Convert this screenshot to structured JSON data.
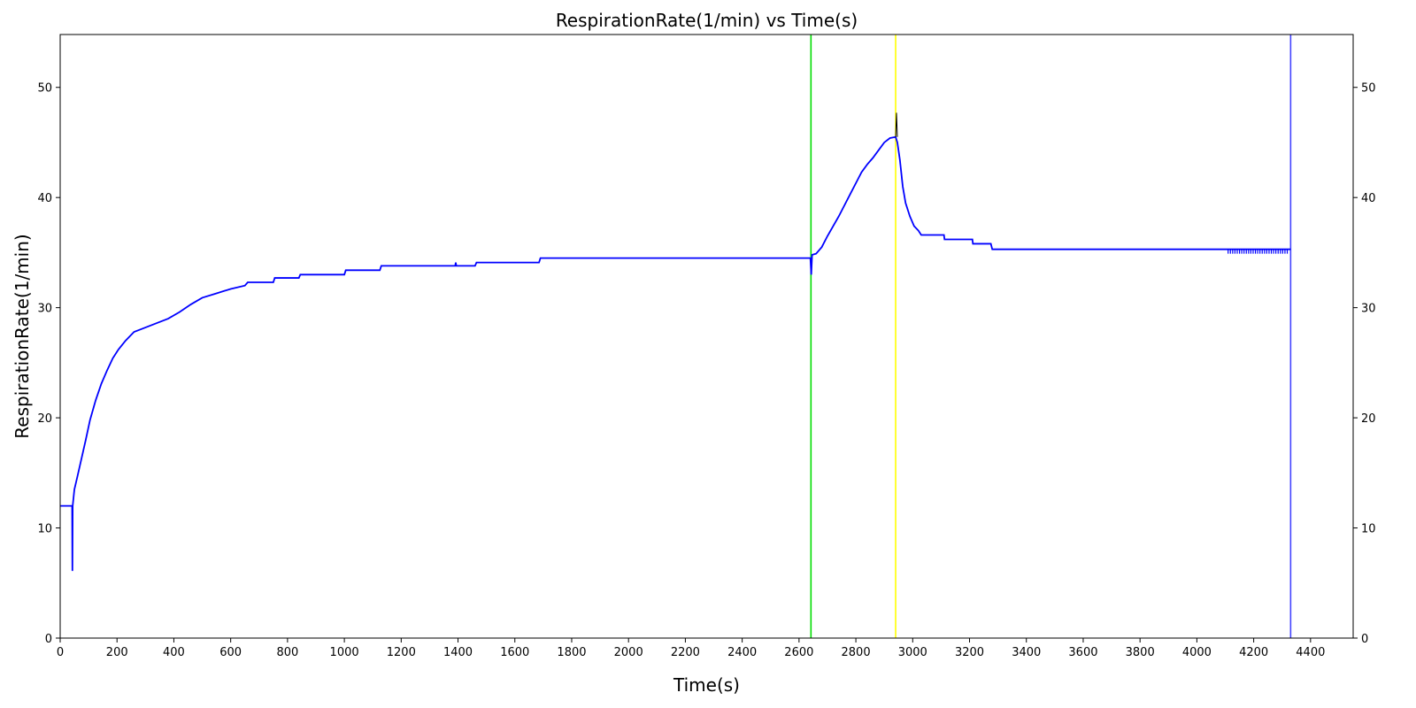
{
  "chart_data": {
    "type": "line",
    "title": "RespirationRate(1/min) vs Time(s)",
    "xlabel": "Time(s)",
    "ylabel": "RespirationRate(1/min)",
    "xlim": [
      0,
      4550
    ],
    "ylim": [
      0,
      54.8
    ],
    "x_ticks": [
      0,
      200,
      400,
      600,
      800,
      1000,
      1200,
      1400,
      1600,
      1800,
      2000,
      2200,
      2400,
      2600,
      2800,
      3000,
      3200,
      3400,
      3600,
      3800,
      4000,
      4200,
      4400
    ],
    "y_ticks": [
      0,
      10,
      20,
      30,
      40,
      50
    ],
    "right_y_ticks": true,
    "grid": false,
    "series": [
      {
        "color": "#0000ff",
        "points": [
          [
            0,
            12
          ],
          [
            40,
            12
          ],
          [
            42,
            12
          ],
          [
            43,
            6.1
          ],
          [
            44,
            12
          ],
          [
            46,
            12.5
          ],
          [
            50,
            13.5
          ],
          [
            60,
            14.6
          ],
          [
            75,
            16.3
          ],
          [
            90,
            18
          ],
          [
            105,
            19.8
          ],
          [
            125,
            21.6
          ],
          [
            145,
            23.1
          ],
          [
            165,
            24.3
          ],
          [
            185,
            25.4
          ],
          [
            205,
            26.2
          ],
          [
            230,
            27.0
          ],
          [
            260,
            27.8
          ],
          [
            280,
            28.0
          ],
          [
            300,
            28.2
          ],
          [
            340,
            28.6
          ],
          [
            380,
            29.0
          ],
          [
            420,
            29.6
          ],
          [
            460,
            30.3
          ],
          [
            500,
            30.9
          ],
          [
            550,
            31.3
          ],
          [
            600,
            31.7
          ],
          [
            650,
            32.0
          ],
          [
            660,
            32.3
          ],
          [
            750,
            32.3
          ],
          [
            755,
            32.7
          ],
          [
            840,
            32.7
          ],
          [
            845,
            33.0
          ],
          [
            1000,
            33.0
          ],
          [
            1005,
            33.4
          ],
          [
            1125,
            33.4
          ],
          [
            1130,
            33.8
          ],
          [
            1390,
            33.8
          ],
          [
            1392,
            34.1
          ],
          [
            1394,
            33.8
          ],
          [
            1460,
            33.8
          ],
          [
            1465,
            34.1
          ],
          [
            1685,
            34.1
          ],
          [
            1690,
            34.5
          ],
          [
            2640,
            34.5
          ],
          [
            2643,
            33.0
          ],
          [
            2646,
            34.8
          ],
          [
            2660,
            34.9
          ],
          [
            2680,
            35.5
          ],
          [
            2700,
            36.5
          ],
          [
            2720,
            37.4
          ],
          [
            2740,
            38.3
          ],
          [
            2760,
            39.3
          ],
          [
            2780,
            40.3
          ],
          [
            2800,
            41.3
          ],
          [
            2820,
            42.3
          ],
          [
            2840,
            43.0
          ],
          [
            2860,
            43.6
          ],
          [
            2880,
            44.3
          ],
          [
            2900,
            45.0
          ],
          [
            2920,
            45.4
          ],
          [
            2940,
            45.5
          ],
          [
            2946,
            45.0
          ],
          [
            2955,
            43.4
          ],
          [
            2965,
            41.0
          ],
          [
            2975,
            39.5
          ],
          [
            2990,
            38.3
          ],
          [
            3005,
            37.4
          ],
          [
            3020,
            37.0
          ],
          [
            3030,
            36.6
          ],
          [
            3110,
            36.6
          ],
          [
            3112,
            36.2
          ],
          [
            3210,
            36.2
          ],
          [
            3212,
            35.8
          ],
          [
            3275,
            35.8
          ],
          [
            3280,
            35.3
          ],
          [
            4330,
            35.3
          ]
        ]
      },
      {
        "color": "#000000",
        "points": [
          [
            2940,
            45.5
          ],
          [
            2943,
            47.7
          ],
          [
            2946,
            45.5
          ]
        ]
      }
    ],
    "vertical_lines": [
      {
        "x": 2642,
        "color": "#00dd00"
      },
      {
        "x": 2940,
        "color": "#ffff00"
      },
      {
        "x": 4330,
        "color": "#4444ff"
      }
    ]
  }
}
